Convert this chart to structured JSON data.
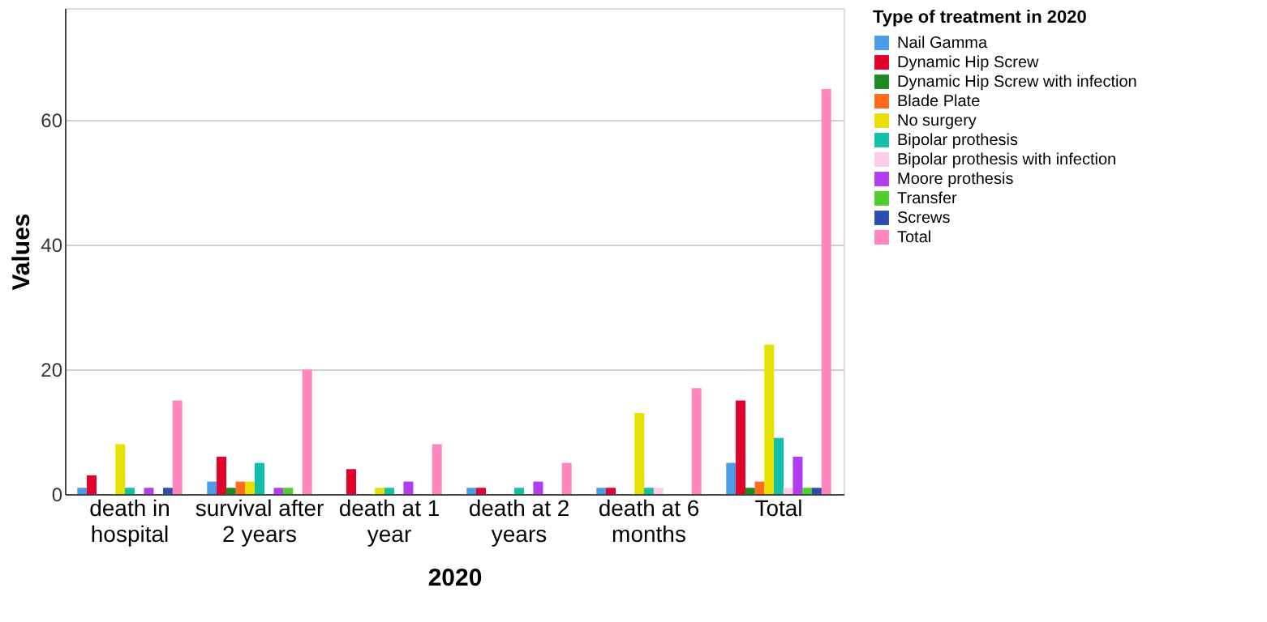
{
  "chart_data": {
    "type": "bar",
    "xlabel": "2020",
    "ylabel": "Values",
    "legend_title": "Type of treatment in 2020",
    "categories": [
      "death in hospital",
      "survival after 2 years",
      "death at 1 year",
      "death at 2 years",
      "death at 6 months",
      "Total"
    ],
    "series": [
      {
        "name": "Nail Gamma",
        "color": "#4a9be8",
        "values": [
          1,
          2,
          0,
          1,
          1,
          5
        ]
      },
      {
        "name": "Dynamic Hip Screw",
        "color": "#e3002b",
        "values": [
          3,
          6,
          4,
          1,
          1,
          15
        ]
      },
      {
        "name": "Dynamic Hip Screw with infection",
        "color": "#1f8a24",
        "values": [
          0,
          1,
          0,
          0,
          0,
          1
        ]
      },
      {
        "name": "Blade Plate",
        "color": "#ff6a1f",
        "values": [
          0,
          2,
          0,
          0,
          0,
          2
        ]
      },
      {
        "name": "No surgery",
        "color": "#e8e000",
        "values": [
          8,
          2,
          1,
          0,
          13,
          24
        ]
      },
      {
        "name": "Bipolar prothesis",
        "color": "#13bfa6",
        "values": [
          1,
          5,
          1,
          1,
          1,
          9
        ]
      },
      {
        "name": "Bipolar prothesis with infection",
        "color": "#ffcce6",
        "values": [
          0,
          0,
          0,
          0,
          1,
          1
        ]
      },
      {
        "name": "Moore prothesis",
        "color": "#b23cf0",
        "values": [
          1,
          1,
          2,
          2,
          0,
          6
        ]
      },
      {
        "name": "Transfer",
        "color": "#4ccf2a",
        "values": [
          0,
          1,
          0,
          0,
          0,
          1
        ]
      },
      {
        "name": "Screws",
        "color": "#2d4db0",
        "values": [
          1,
          0,
          0,
          0,
          0,
          1
        ]
      },
      {
        "name": "Total",
        "color": "#ff85bf",
        "values": [
          15,
          20,
          8,
          5,
          17,
          65
        ]
      }
    ],
    "ylim": [
      0,
      78
    ],
    "yticks": [
      0,
      20,
      40,
      60
    ],
    "grid": "y",
    "legend": "top right"
  }
}
